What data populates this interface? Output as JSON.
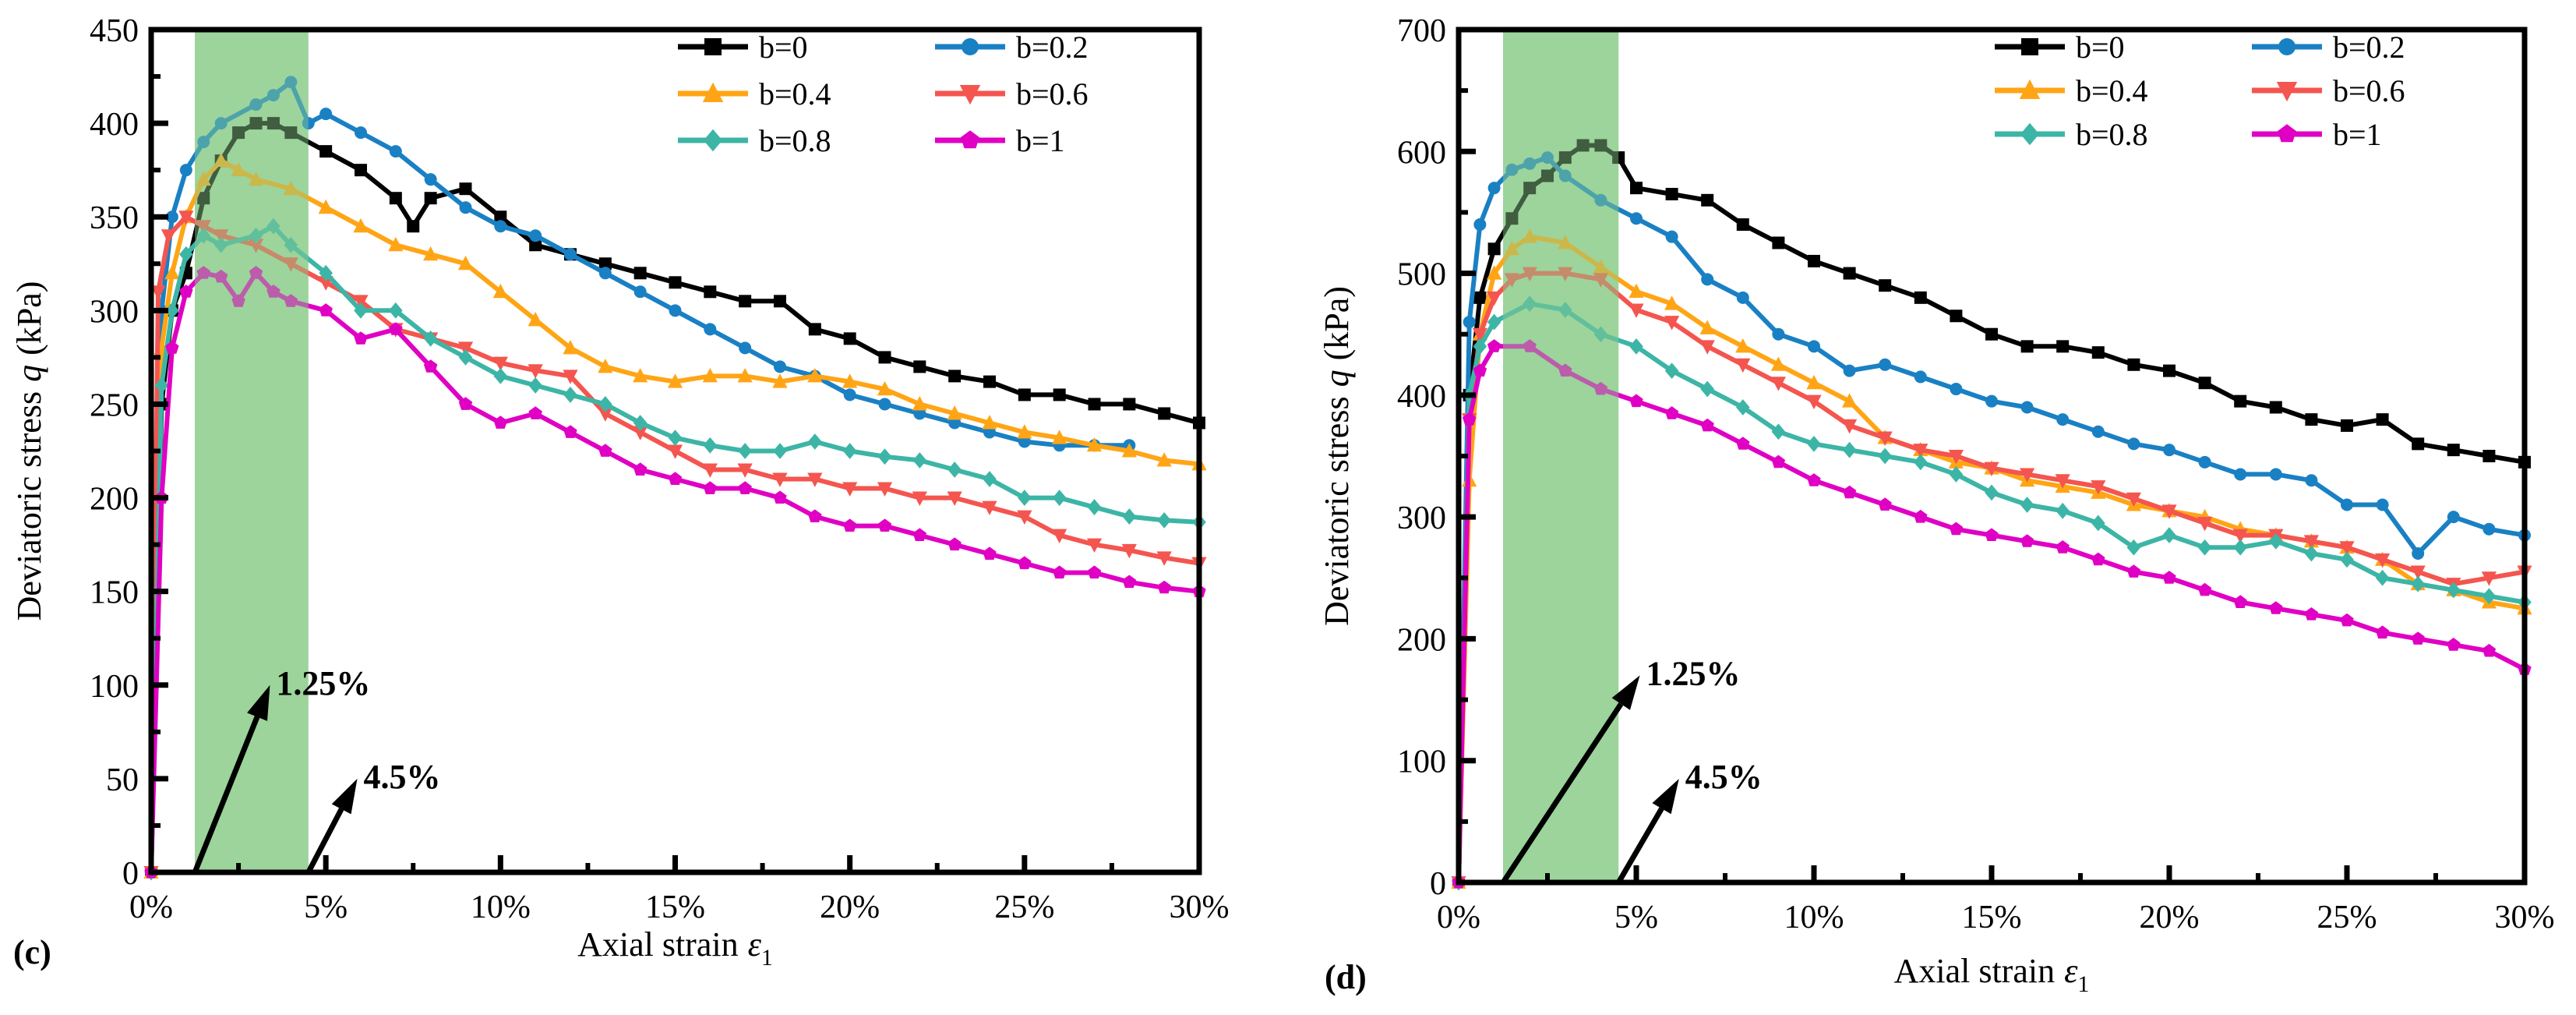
{
  "chart_data": [
    {
      "type": "line",
      "panel_label": "(c)",
      "xlabel": "Axial strain",
      "xlabel_symbol": "ε",
      "xlabel_sub": "1",
      "ylabel": "Deviatoric stress",
      "ylabel_symbol": "q",
      "ylabel_unit": "(kPa)",
      "xlim": [
        0,
        30
      ],
      "ylim": [
        0,
        450
      ],
      "xticks": [
        0,
        5,
        10,
        15,
        20,
        25,
        30
      ],
      "xtick_labels": [
        "0%",
        "5%",
        "10%",
        "15%",
        "20%",
        "25%",
        "30%"
      ],
      "yticks": [
        0,
        50,
        100,
        150,
        200,
        250,
        300,
        350,
        400,
        450
      ],
      "ytick_labels": [
        "0",
        "50",
        "100",
        "150",
        "200",
        "250",
        "300",
        "350",
        "400",
        "450"
      ],
      "legend_position": "top-right",
      "shaded_band": {
        "from": 1.25,
        "to": 4.5,
        "color": "#8fce8f"
      },
      "annotations": [
        {
          "text": "1.25%",
          "from": [
            1.25,
            0
          ],
          "to": [
            3.4,
            100
          ]
        },
        {
          "text": "4.5%",
          "from": [
            4.5,
            0
          ],
          "to": [
            5.9,
            50
          ]
        }
      ],
      "series": [
        {
          "name": "b=0",
          "color": "#000000",
          "marker": "square",
          "x": [
            0,
            0.3,
            0.6,
            1,
            1.5,
            2,
            2.5,
            3,
            3.5,
            4,
            5,
            6,
            7,
            7.5,
            8,
            9,
            10,
            11,
            12,
            13,
            14,
            15,
            16,
            17,
            18,
            19,
            20,
            21,
            22,
            23,
            24,
            25,
            26,
            27,
            28,
            29,
            30
          ],
          "y": [
            0,
            250,
            300,
            320,
            360,
            380,
            395,
            400,
            400,
            395,
            385,
            375,
            360,
            345,
            360,
            365,
            350,
            335,
            330,
            325,
            320,
            315,
            310,
            305,
            305,
            290,
            285,
            275,
            270,
            265,
            262,
            255,
            255,
            250,
            250,
            245,
            240
          ]
        },
        {
          "name": "b=0.2",
          "color": "#1a80c4",
          "marker": "circle",
          "x": [
            0,
            0.3,
            0.6,
            1,
            1.5,
            2,
            3,
            3.5,
            4,
            4.5,
            5,
            6,
            7,
            8,
            9,
            10,
            11,
            12,
            13,
            14,
            15,
            16,
            17,
            18,
            19,
            20,
            21,
            22,
            23,
            24,
            25,
            26,
            27,
            28
          ],
          "y": [
            0,
            300,
            350,
            375,
            390,
            400,
            410,
            415,
            422,
            400,
            405,
            395,
            385,
            370,
            355,
            345,
            340,
            330,
            320,
            310,
            300,
            290,
            280,
            270,
            265,
            255,
            250,
            245,
            240,
            235,
            230,
            228,
            228,
            228
          ]
        },
        {
          "name": "b=0.4",
          "color": "#ffa515",
          "marker": "triangle-up",
          "x": [
            0,
            0.3,
            0.6,
            1,
            1.5,
            2,
            2.5,
            3,
            4,
            5,
            6,
            7,
            8,
            9,
            10,
            11,
            12,
            13,
            14,
            15,
            16,
            17,
            18,
            19,
            20,
            21,
            22,
            23,
            24,
            25,
            26,
            27,
            28,
            29,
            30
          ],
          "y": [
            0,
            280,
            320,
            350,
            370,
            380,
            375,
            370,
            365,
            355,
            345,
            335,
            330,
            325,
            310,
            295,
            280,
            270,
            265,
            262,
            265,
            265,
            262,
            265,
            262,
            258,
            250,
            245,
            240,
            235,
            232,
            228,
            225,
            220,
            218
          ]
        },
        {
          "name": "b=0.6",
          "color": "#f4554f",
          "marker": "triangle-down",
          "x": [
            0,
            0.2,
            0.5,
            1,
            1.5,
            2,
            3,
            4,
            5,
            6,
            7,
            8,
            9,
            10,
            11,
            12,
            13,
            14,
            15,
            16,
            17,
            18,
            19,
            20,
            21,
            22,
            23,
            24,
            25,
            26,
            27,
            28,
            29,
            30
          ],
          "y": [
            0,
            310,
            340,
            350,
            345,
            340,
            335,
            325,
            315,
            305,
            290,
            285,
            280,
            272,
            268,
            265,
            245,
            235,
            225,
            215,
            215,
            210,
            210,
            205,
            205,
            200,
            200,
            195,
            190,
            180,
            175,
            172,
            168,
            165
          ]
        },
        {
          "name": "b=0.8",
          "color": "#3db5a6",
          "marker": "diamond",
          "x": [
            0,
            0.3,
            0.6,
            1,
            1.5,
            2,
            3,
            3.5,
            4,
            5,
            6,
            7,
            8,
            9,
            10,
            11,
            12,
            13,
            14,
            15,
            16,
            17,
            18,
            19,
            20,
            21,
            22,
            23,
            24,
            25,
            26,
            27,
            28,
            29,
            30
          ],
          "y": [
            0,
            260,
            300,
            330,
            340,
            335,
            340,
            345,
            335,
            320,
            300,
            300,
            285,
            275,
            265,
            260,
            255,
            250,
            240,
            232,
            228,
            225,
            225,
            230,
            225,
            222,
            220,
            215,
            210,
            200,
            200,
            195,
            190,
            188,
            187
          ]
        },
        {
          "name": "b=1",
          "color": "#e000c4",
          "marker": "pentagon",
          "x": [
            0,
            0.3,
            0.6,
            1,
            1.5,
            2,
            2.5,
            3,
            3.5,
            4,
            5,
            6,
            7,
            8,
            9,
            10,
            11,
            12,
            13,
            14,
            15,
            16,
            17,
            18,
            19,
            20,
            21,
            22,
            23,
            24,
            25,
            26,
            27,
            28,
            29,
            30
          ],
          "y": [
            0,
            200,
            280,
            310,
            320,
            318,
            305,
            320,
            310,
            305,
            300,
            285,
            290,
            270,
            250,
            240,
            245,
            235,
            225,
            215,
            210,
            205,
            205,
            200,
            190,
            185,
            185,
            180,
            175,
            170,
            165,
            160,
            160,
            155,
            152,
            150
          ]
        }
      ]
    },
    {
      "type": "line",
      "panel_label": "(d)",
      "xlabel": "Axial strain",
      "xlabel_symbol": "ε",
      "xlabel_sub": "1",
      "ylabel": "Deviatoric stress",
      "ylabel_symbol": "q",
      "ylabel_unit": "(kPa)",
      "xlim": [
        0,
        30
      ],
      "ylim": [
        0,
        700
      ],
      "xticks": [
        0,
        5,
        10,
        15,
        20,
        25,
        30
      ],
      "xtick_labels": [
        "0%",
        "5%",
        "10%",
        "15%",
        "20%",
        "25%",
        "30%"
      ],
      "yticks": [
        0,
        100,
        200,
        300,
        400,
        500,
        600,
        700
      ],
      "ytick_labels": [
        "0",
        "100",
        "200",
        "300",
        "400",
        "500",
        "600",
        "700"
      ],
      "legend_position": "top-right",
      "shaded_band": {
        "from": 1.25,
        "to": 4.5,
        "color": "#8fce8f"
      },
      "annotations": [
        {
          "text": "1.25%",
          "from": [
            1.25,
            0
          ],
          "to": [
            5.1,
            170
          ]
        },
        {
          "text": "4.5%",
          "from": [
            4.5,
            0
          ],
          "to": [
            6.2,
            85
          ]
        }
      ],
      "series": [
        {
          "name": "b=0",
          "color": "#000000",
          "marker": "square",
          "x": [
            0,
            0.3,
            0.6,
            1,
            1.5,
            2,
            2.5,
            3,
            3.5,
            4,
            4.5,
            5,
            6,
            7,
            8,
            9,
            10,
            11,
            12,
            13,
            14,
            15,
            16,
            17,
            18,
            19,
            20,
            21,
            22,
            23,
            24,
            25,
            26,
            27,
            28,
            29,
            30
          ],
          "y": [
            0,
            400,
            480,
            520,
            545,
            570,
            580,
            595,
            605,
            605,
            595,
            570,
            565,
            560,
            540,
            525,
            510,
            500,
            490,
            480,
            465,
            450,
            440,
            440,
            435,
            425,
            420,
            410,
            395,
            390,
            380,
            375,
            380,
            360,
            355,
            350,
            345
          ]
        },
        {
          "name": "b=0.2",
          "color": "#1a80c4",
          "marker": "circle",
          "x": [
            0,
            0.3,
            0.6,
            1,
            1.5,
            2,
            2.5,
            3,
            4,
            5,
            6,
            7,
            8,
            9,
            10,
            11,
            12,
            13,
            14,
            15,
            16,
            17,
            18,
            19,
            20,
            21,
            22,
            23,
            24,
            25,
            26,
            27,
            28,
            29,
            30
          ],
          "y": [
            0,
            460,
            540,
            570,
            585,
            590,
            595,
            580,
            560,
            545,
            530,
            495,
            480,
            450,
            440,
            420,
            425,
            415,
            405,
            395,
            390,
            380,
            370,
            360,
            355,
            345,
            335,
            335,
            330,
            310,
            310,
            270,
            300,
            290,
            285
          ]
        },
        {
          "name": "b=0.4",
          "color": "#ffa515",
          "marker": "triangle-up",
          "x": [
            0,
            0.3,
            0.6,
            1,
            1.5,
            2,
            3,
            4,
            5,
            6,
            7,
            8,
            9,
            10,
            11,
            12,
            13,
            14,
            15,
            16,
            17,
            18,
            19,
            20,
            21,
            22,
            23,
            24,
            25,
            26,
            27,
            28,
            29,
            30
          ],
          "y": [
            0,
            330,
            450,
            500,
            520,
            530,
            525,
            505,
            485,
            475,
            455,
            440,
            425,
            410,
            395,
            365,
            355,
            345,
            340,
            330,
            325,
            320,
            310,
            305,
            300,
            290,
            285,
            280,
            275,
            265,
            245,
            240,
            230,
            225
          ]
        },
        {
          "name": "b=0.6",
          "color": "#f4554f",
          "marker": "triangle-down",
          "x": [
            0,
            0.3,
            0.6,
            1,
            1.5,
            2,
            3,
            4,
            5,
            6,
            7,
            8,
            9,
            10,
            11,
            12,
            13,
            14,
            15,
            16,
            17,
            18,
            19,
            20,
            21,
            22,
            23,
            24,
            25,
            26,
            27,
            28,
            29,
            30
          ],
          "y": [
            0,
            380,
            450,
            480,
            495,
            500,
            500,
            495,
            470,
            460,
            440,
            425,
            410,
            395,
            375,
            365,
            355,
            350,
            340,
            335,
            330,
            325,
            315,
            305,
            295,
            285,
            285,
            280,
            275,
            265,
            255,
            245,
            250,
            255
          ]
        },
        {
          "name": "b=0.8",
          "color": "#3db5a6",
          "marker": "diamond",
          "x": [
            0,
            0.3,
            0.6,
            1,
            2,
            3,
            4,
            5,
            6,
            7,
            8,
            9,
            10,
            11,
            12,
            13,
            14,
            15,
            16,
            17,
            18,
            19,
            20,
            21,
            22,
            23,
            24,
            25,
            26,
            27,
            28,
            29,
            30
          ],
          "y": [
            0,
            400,
            440,
            460,
            475,
            470,
            450,
            440,
            420,
            405,
            390,
            370,
            360,
            355,
            350,
            345,
            335,
            320,
            310,
            305,
            295,
            275,
            285,
            275,
            275,
            280,
            270,
            265,
            250,
            245,
            240,
            235,
            230
          ]
        },
        {
          "name": "b=1",
          "color": "#e000c4",
          "marker": "pentagon",
          "x": [
            0,
            0.3,
            0.6,
            1,
            2,
            3,
            4,
            5,
            6,
            7,
            8,
            9,
            10,
            11,
            12,
            13,
            14,
            15,
            16,
            17,
            18,
            19,
            20,
            21,
            22,
            23,
            24,
            25,
            26,
            27,
            28,
            29,
            30
          ],
          "y": [
            0,
            380,
            420,
            440,
            440,
            420,
            405,
            395,
            385,
            375,
            360,
            345,
            330,
            320,
            310,
            300,
            290,
            285,
            280,
            275,
            265,
            255,
            250,
            240,
            230,
            225,
            220,
            215,
            205,
            200,
            195,
            190,
            175
          ]
        }
      ]
    }
  ]
}
